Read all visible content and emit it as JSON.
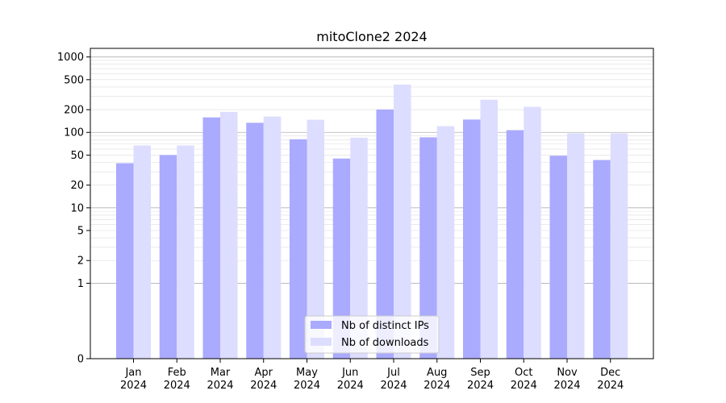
{
  "chart_data": {
    "type": "bar",
    "title": "mitoClone2 2024",
    "xlabel": "",
    "ylabel": "",
    "yscale": "symlog",
    "ylim": [
      0,
      1300
    ],
    "yticks": [
      0,
      1,
      2,
      5,
      10,
      20,
      50,
      100,
      200,
      500,
      1000
    ],
    "grid": true,
    "legend_position": "bottom-center",
    "categories": [
      [
        "Jan",
        "2024"
      ],
      [
        "Feb",
        "2024"
      ],
      [
        "Mar",
        "2024"
      ],
      [
        "Apr",
        "2024"
      ],
      [
        "May",
        "2024"
      ],
      [
        "Jun",
        "2024"
      ],
      [
        "Jul",
        "2024"
      ],
      [
        "Aug",
        "2024"
      ],
      [
        "Sep",
        "2024"
      ],
      [
        "Oct",
        "2024"
      ],
      [
        "Nov",
        "2024"
      ],
      [
        "Dec",
        "2024"
      ]
    ],
    "series": [
      {
        "name": "Nb of distinct IPs",
        "color": "#aaaaff",
        "values": [
          39,
          50,
          158,
          134,
          81,
          45,
          201,
          86,
          148,
          107,
          49,
          43
        ]
      },
      {
        "name": "Nb of downloads",
        "color": "#ddddff",
        "values": [
          67,
          67,
          187,
          162,
          147,
          85,
          430,
          121,
          271,
          218,
          97,
          97
        ]
      }
    ]
  }
}
